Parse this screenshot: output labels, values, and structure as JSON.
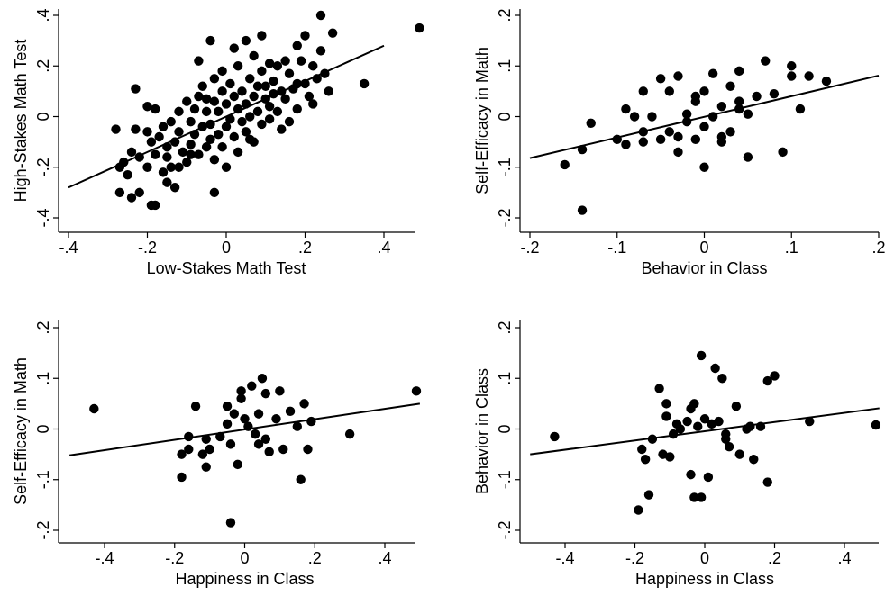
{
  "chart_data": [
    {
      "type": "scatter",
      "xlabel": "Low-Stakes Math Test",
      "ylabel": "High-Stakes Math Test",
      "xlim": [
        -0.4,
        0.5
      ],
      "ylim": [
        -0.42,
        0.42
      ],
      "xticks": [
        {
          "v": -0.4,
          "label": "-.4"
        },
        {
          "v": -0.2,
          "label": "-.2"
        },
        {
          "v": 0,
          "label": "0"
        },
        {
          "v": 0.2,
          "label": ".2"
        },
        {
          "v": 0.4,
          "label": ".4"
        }
      ],
      "yticks": [
        {
          "v": -0.4,
          "label": "-.4"
        },
        {
          "v": -0.2,
          "label": "-.2"
        },
        {
          "v": 0,
          "label": "0"
        },
        {
          "v": 0.2,
          "label": ".2"
        },
        {
          "v": 0.4,
          "label": ".4"
        }
      ],
      "fit_line": [
        [
          -0.4,
          -0.28
        ],
        [
          0.4,
          0.28
        ]
      ],
      "points": [
        [
          -0.27,
          -0.3
        ],
        [
          -0.24,
          -0.32
        ],
        [
          -0.22,
          -0.3
        ],
        [
          -0.19,
          -0.35
        ],
        [
          -0.18,
          -0.35
        ],
        [
          -0.25,
          -0.23
        ],
        [
          -0.26,
          -0.18
        ],
        [
          -0.27,
          -0.2
        ],
        [
          -0.24,
          -0.14
        ],
        [
          -0.22,
          -0.16
        ],
        [
          -0.2,
          -0.2
        ],
        [
          -0.19,
          -0.1
        ],
        [
          -0.18,
          -0.15
        ],
        [
          -0.16,
          -0.22
        ],
        [
          -0.15,
          -0.26
        ],
        [
          -0.14,
          -0.2
        ],
        [
          -0.13,
          -0.28
        ],
        [
          -0.23,
          -0.05
        ],
        [
          -0.2,
          -0.06
        ],
        [
          -0.17,
          -0.08
        ],
        [
          -0.15,
          -0.12
        ],
        [
          -0.13,
          -0.1
        ],
        [
          -0.12,
          -0.06
        ],
        [
          -0.11,
          -0.14
        ],
        [
          -0.1,
          -0.18
        ],
        [
          -0.09,
          -0.11
        ],
        [
          -0.08,
          -0.07
        ],
        [
          -0.07,
          -0.15
        ],
        [
          -0.06,
          -0.04
        ],
        [
          -0.05,
          -0.12
        ],
        [
          -0.04,
          -0.09
        ],
        [
          -0.03,
          -0.17
        ],
        [
          -0.28,
          -0.05
        ],
        [
          -0.23,
          0.11
        ],
        [
          -0.18,
          0.03
        ],
        [
          -0.14,
          -0.02
        ],
        [
          -0.12,
          0.02
        ],
        [
          -0.1,
          0.06
        ],
        [
          -0.09,
          -0.02
        ],
        [
          -0.08,
          0.03
        ],
        [
          -0.07,
          0.08
        ],
        [
          -0.06,
          0.12
        ],
        [
          -0.05,
          0.02
        ],
        [
          -0.05,
          0.07
        ],
        [
          -0.04,
          -0.03
        ],
        [
          -0.03,
          0.15
        ],
        [
          -0.03,
          0.06
        ],
        [
          -0.02,
          0.02
        ],
        [
          -0.02,
          -0.07
        ],
        [
          -0.01,
          0.1
        ],
        [
          -0.01,
          -0.12
        ],
        [
          0,
          0.05
        ],
        [
          0,
          -0.04
        ],
        [
          0.01,
          0.13
        ],
        [
          0.01,
          -0.01
        ],
        [
          0.02,
          0.08
        ],
        [
          0.02,
          -0.08
        ],
        [
          0.03,
          0.03
        ],
        [
          0.03,
          0.2
        ],
        [
          0.04,
          -0.02
        ],
        [
          0.04,
          0.1
        ],
        [
          0.05,
          0.05
        ],
        [
          0.05,
          -0.06
        ],
        [
          0.06,
          0.15
        ],
        [
          0.06,
          0.0
        ],
        [
          0.07,
          0.08
        ],
        [
          0.07,
          -0.1
        ],
        [
          0.08,
          0.12
        ],
        [
          0.08,
          0.02
        ],
        [
          0.09,
          0.18
        ],
        [
          0.09,
          -0.03
        ],
        [
          0.1,
          0.07
        ],
        [
          0.1,
          0.12
        ],
        [
          0.11,
          0.04
        ],
        [
          0.11,
          -0.01
        ],
        [
          0.12,
          0.14
        ],
        [
          0.12,
          0.09
        ],
        [
          0.13,
          0.2
        ],
        [
          0.13,
          0.02
        ],
        [
          0.14,
          0.1
        ],
        [
          0.14,
          -0.05
        ],
        [
          0.15,
          0.07
        ],
        [
          0.16,
          0.17
        ],
        [
          0.17,
          0.11
        ],
        [
          0.18,
          0.03
        ],
        [
          0.19,
          0.22
        ],
        [
          0.2,
          0.13
        ],
        [
          0.21,
          0.08
        ],
        [
          0.22,
          0.05
        ],
        [
          0.22,
          0.2
        ],
        [
          0.23,
          0.15
        ],
        [
          0.24,
          0.26
        ],
        [
          0.25,
          0.17
        ],
        [
          0.26,
          0.1
        ],
        [
          0.27,
          0.33
        ],
        [
          0.24,
          0.4
        ],
        [
          0.2,
          0.32
        ],
        [
          0.18,
          0.28
        ],
        [
          0.15,
          0.22
        ],
        [
          -0.04,
          0.3
        ],
        [
          0.02,
          0.27
        ],
        [
          0.05,
          0.3
        ],
        [
          0.09,
          0.32
        ],
        [
          -0.07,
          0.22
        ],
        [
          -0.03,
          -0.3
        ],
        [
          0.35,
          0.13
        ],
        [
          0.49,
          0.35
        ],
        [
          0.16,
          -0.02
        ],
        [
          0.18,
          0.13
        ],
        [
          0.11,
          0.21
        ],
        [
          0.07,
          0.24
        ],
        [
          0.0,
          -0.2
        ],
        [
          -0.01,
          0.18
        ],
        [
          0.03,
          -0.14
        ],
        [
          0.06,
          -0.09
        ],
        [
          -0.09,
          -0.15
        ],
        [
          -0.12,
          -0.2
        ],
        [
          -0.15,
          -0.16
        ],
        [
          -0.16,
          -0.04
        ],
        [
          -0.2,
          0.04
        ]
      ]
    },
    {
      "type": "scatter",
      "xlabel": "Behavior in Class",
      "ylabel": "Self-Efficacy in Math",
      "xlim": [
        -0.21,
        0.2
      ],
      "ylim": [
        -0.21,
        0.21
      ],
      "xticks": [
        {
          "v": -0.2,
          "label": "-.2"
        },
        {
          "v": -0.1,
          "label": "-.1"
        },
        {
          "v": 0,
          "label": "0"
        },
        {
          "v": 0.1,
          "label": ".1"
        },
        {
          "v": 0.2,
          "label": ".2"
        }
      ],
      "yticks": [
        {
          "v": -0.2,
          "label": "-.2"
        },
        {
          "v": -0.1,
          "label": "-.1"
        },
        {
          "v": 0,
          "label": "0"
        },
        {
          "v": 0.1,
          "label": ".1"
        },
        {
          "v": 0.2,
          "label": ".2"
        }
      ],
      "fit_line": [
        [
          -0.2,
          -0.082
        ],
        [
          0.2,
          0.081
        ]
      ],
      "points": [
        [
          -0.16,
          -0.095
        ],
        [
          -0.14,
          -0.185
        ],
        [
          -0.14,
          -0.065
        ],
        [
          -0.13,
          -0.013
        ],
        [
          -0.1,
          -0.045
        ],
        [
          -0.09,
          0.015
        ],
        [
          -0.09,
          -0.055
        ],
        [
          -0.08,
          0.0
        ],
        [
          -0.07,
          -0.05
        ],
        [
          -0.07,
          -0.03
        ],
        [
          -0.06,
          0.0
        ],
        [
          -0.05,
          0.075
        ],
        [
          -0.05,
          -0.045
        ],
        [
          -0.04,
          -0.03
        ],
        [
          -0.04,
          0.05
        ],
        [
          -0.03,
          -0.07
        ],
        [
          -0.03,
          -0.04
        ],
        [
          -0.02,
          -0.01
        ],
        [
          -0.02,
          0.005
        ],
        [
          -0.01,
          0.03
        ],
        [
          -0.01,
          -0.045
        ],
        [
          0,
          -0.1
        ],
        [
          0,
          0.05
        ],
        [
          0,
          -0.02
        ],
        [
          0.01,
          0.085
        ],
        [
          0.01,
          0.0
        ],
        [
          0.02,
          0.02
        ],
        [
          0.02,
          -0.05
        ],
        [
          0.03,
          0.06
        ],
        [
          0.03,
          -0.03
        ],
        [
          0.04,
          0.03
        ],
        [
          0.04,
          0.015
        ],
        [
          0.05,
          0.005
        ],
        [
          0.05,
          -0.08
        ],
        [
          0.06,
          0.04
        ],
        [
          0.07,
          0.11
        ],
        [
          0.08,
          0.045
        ],
        [
          0.09,
          -0.07
        ],
        [
          0.1,
          0.1
        ],
        [
          0.1,
          0.08
        ],
        [
          0.11,
          0.015
        ],
        [
          0.12,
          0.08
        ],
        [
          0.14,
          0.07
        ],
        [
          -0.03,
          0.08
        ],
        [
          -0.07,
          0.05
        ],
        [
          0.04,
          0.09
        ],
        [
          0.02,
          -0.04
        ],
        [
          -0.01,
          0.04
        ]
      ]
    },
    {
      "type": "scatter",
      "xlabel": "Happiness in Class",
      "ylabel": "Self-Efficacy in Math",
      "xlim": [
        -0.52,
        0.51
      ],
      "ylim": [
        -0.21,
        0.21
      ],
      "xticks": [
        {
          "v": -0.4,
          "label": "-.4"
        },
        {
          "v": -0.2,
          "label": "-.2"
        },
        {
          "v": 0,
          "label": "0"
        },
        {
          "v": 0.2,
          "label": ".2"
        },
        {
          "v": 0.4,
          "label": ".4"
        }
      ],
      "yticks": [
        {
          "v": -0.2,
          "label": "-.2"
        },
        {
          "v": -0.1,
          "label": "-.1"
        },
        {
          "v": 0,
          "label": "0"
        },
        {
          "v": 0.1,
          "label": ".1"
        },
        {
          "v": 0.2,
          "label": ".2"
        }
      ],
      "fit_line": [
        [
          -0.5,
          -0.052
        ],
        [
          0.5,
          0.05
        ]
      ],
      "points": [
        [
          -0.43,
          0.04
        ],
        [
          -0.18,
          -0.095
        ],
        [
          -0.18,
          -0.05
        ],
        [
          -0.16,
          -0.04
        ],
        [
          -0.14,
          0.045
        ],
        [
          -0.12,
          -0.05
        ],
        [
          -0.11,
          -0.02
        ],
        [
          -0.11,
          -0.075
        ],
        [
          -0.1,
          -0.04
        ],
        [
          -0.07,
          -0.015
        ],
        [
          -0.05,
          0.045
        ],
        [
          -0.05,
          0.01
        ],
        [
          -0.04,
          -0.185
        ],
        [
          -0.04,
          -0.03
        ],
        [
          -0.03,
          0.03
        ],
        [
          -0.02,
          -0.07
        ],
        [
          -0.01,
          0.075
        ],
        [
          -0.01,
          0.06
        ],
        [
          0,
          0.02
        ],
        [
          0.02,
          0.085
        ],
        [
          0.03,
          -0.01
        ],
        [
          0.04,
          0.03
        ],
        [
          0.05,
          0.1
        ],
        [
          0.06,
          0.07
        ],
        [
          0.07,
          -0.045
        ],
        [
          0.09,
          0.02
        ],
        [
          0.1,
          0.075
        ],
        [
          0.11,
          -0.04
        ],
        [
          0.13,
          0.035
        ],
        [
          0.15,
          0.005
        ],
        [
          0.16,
          -0.1
        ],
        [
          0.17,
          0.05
        ],
        [
          0.18,
          -0.04
        ],
        [
          0.19,
          0.015
        ],
        [
          0.3,
          -0.01
        ],
        [
          0.49,
          0.075
        ],
        [
          -0.16,
          -0.015
        ],
        [
          0.04,
          -0.03
        ],
        [
          0.01,
          0.005
        ],
        [
          0.06,
          -0.02
        ]
      ]
    },
    {
      "type": "scatter",
      "xlabel": "Happiness in Class",
      "ylabel": "Behavior in Class",
      "xlim": [
        -0.52,
        0.51
      ],
      "ylim": [
        -0.21,
        0.21
      ],
      "xticks": [
        {
          "v": -0.4,
          "label": "-.4"
        },
        {
          "v": -0.2,
          "label": "-.2"
        },
        {
          "v": 0,
          "label": "0"
        },
        {
          "v": 0.2,
          "label": ".2"
        },
        {
          "v": 0.4,
          "label": ".4"
        }
      ],
      "yticks": [
        {
          "v": -0.2,
          "label": "-.2"
        },
        {
          "v": -0.1,
          "label": "-.1"
        },
        {
          "v": 0,
          "label": "0"
        },
        {
          "v": 0.1,
          "label": ".1"
        },
        {
          "v": 0.2,
          "label": ".2"
        }
      ],
      "fit_line": [
        [
          -0.5,
          -0.05
        ],
        [
          0.5,
          0.041
        ]
      ],
      "points": [
        [
          -0.43,
          -0.015
        ],
        [
          -0.19,
          -0.16
        ],
        [
          -0.18,
          -0.04
        ],
        [
          -0.17,
          -0.06
        ],
        [
          -0.16,
          -0.13
        ],
        [
          -0.13,
          0.08
        ],
        [
          -0.12,
          -0.05
        ],
        [
          -0.11,
          0.05
        ],
        [
          -0.11,
          0.025
        ],
        [
          -0.1,
          -0.055
        ],
        [
          -0.09,
          -0.01
        ],
        [
          -0.07,
          0.0
        ],
        [
          -0.05,
          0.015
        ],
        [
          -0.04,
          -0.09
        ],
        [
          -0.03,
          -0.135
        ],
        [
          -0.03,
          0.05
        ],
        [
          -0.02,
          0.005
        ],
        [
          -0.01,
          0.145
        ],
        [
          -0.01,
          -0.135
        ],
        [
          0,
          0.02
        ],
        [
          0.01,
          -0.095
        ],
        [
          0.02,
          0.01
        ],
        [
          0.03,
          0.12
        ],
        [
          0.05,
          0.1
        ],
        [
          0.06,
          -0.01
        ],
        [
          0.07,
          -0.035
        ],
        [
          0.09,
          0.045
        ],
        [
          0.1,
          -0.05
        ],
        [
          0.12,
          0.0
        ],
        [
          0.14,
          -0.06
        ],
        [
          0.16,
          0.005
        ],
        [
          0.18,
          0.095
        ],
        [
          0.18,
          -0.105
        ],
        [
          0.2,
          0.105
        ],
        [
          0.3,
          0.015
        ],
        [
          0.49,
          0.008
        ],
        [
          -0.15,
          -0.02
        ],
        [
          -0.04,
          0.04
        ],
        [
          0.04,
          0.015
        ],
        [
          0.13,
          0.005
        ],
        [
          -0.08,
          0.01
        ],
        [
          0.06,
          -0.02
        ]
      ]
    }
  ]
}
